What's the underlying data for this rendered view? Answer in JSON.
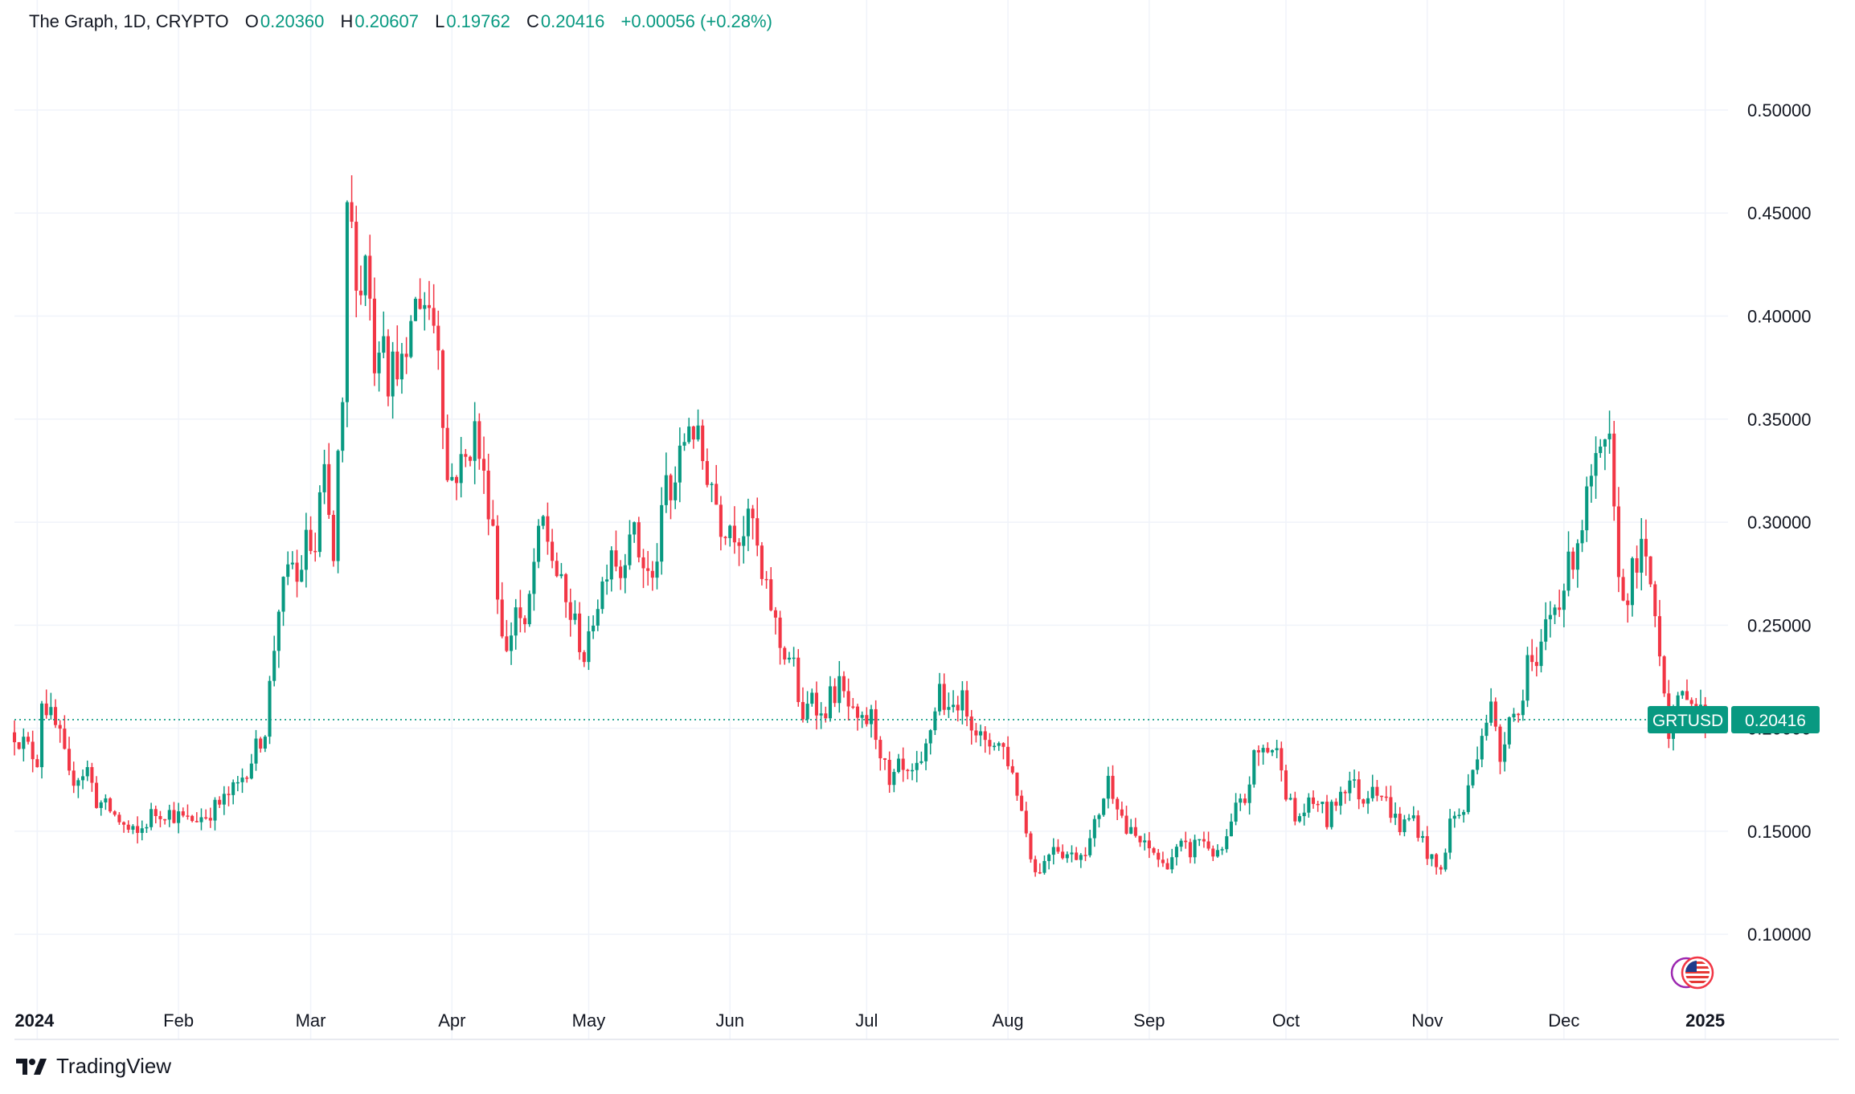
{
  "legend": {
    "title": "The Graph, 1D, CRYPTO",
    "o_label": "O",
    "o_value": "0.20360",
    "h_label": "H",
    "h_value": "0.20607",
    "l_label": "L",
    "l_value": "0.19762",
    "c_label": "C",
    "c_value": "0.20416",
    "change": "+0.00056 (+0.28%)"
  },
  "brand": {
    "name": "TradingView",
    "logo_icon": "tradingview-logo-icon"
  },
  "colors": {
    "up": "#089981",
    "down": "#F23645",
    "grid": "#F0F3FA",
    "text": "#131722",
    "lastline": "#089981"
  },
  "chart_data": {
    "type": "candlestick",
    "symbol": "GRTUSD",
    "last_price": "0.20416",
    "last_value": 0.20416,
    "y_ticks": [
      0.1,
      0.15,
      0.2,
      0.25,
      0.3,
      0.35,
      0.4,
      0.45,
      0.5
    ],
    "y_tick_labels": [
      "0.10000",
      "0.15000",
      "0.20000",
      "0.25000",
      "0.30000",
      "0.35000",
      "0.40000",
      "0.45000",
      "0.50000"
    ],
    "ylim": [
      0.072,
      0.53
    ],
    "x_labels": [
      "2024",
      "Feb",
      "Mar",
      "Apr",
      "May",
      "Jun",
      "Jul",
      "Aug",
      "Sep",
      "Oct",
      "Nov",
      "Dec",
      "2025"
    ],
    "x_label_days": [
      0,
      31,
      60,
      91,
      121,
      152,
      182,
      213,
      244,
      274,
      305,
      335,
      366
    ],
    "x_range_days": [
      -5,
      371
    ],
    "close_path": [
      [
        -5,
        0.198
      ],
      [
        0,
        0.185
      ],
      [
        1,
        0.215
      ],
      [
        3,
        0.205
      ],
      [
        5,
        0.195
      ],
      [
        7,
        0.175
      ],
      [
        11,
        0.18
      ],
      [
        13,
        0.165
      ],
      [
        16,
        0.16
      ],
      [
        20,
        0.15
      ],
      [
        22,
        0.148
      ],
      [
        25,
        0.158
      ],
      [
        28,
        0.16
      ],
      [
        33,
        0.155
      ],
      [
        37,
        0.158
      ],
      [
        41,
        0.165
      ],
      [
        44,
        0.172
      ],
      [
        48,
        0.19
      ],
      [
        50,
        0.2
      ],
      [
        53,
        0.26
      ],
      [
        56,
        0.28
      ],
      [
        57,
        0.27
      ],
      [
        59,
        0.29
      ],
      [
        61,
        0.285
      ],
      [
        62,
        0.31
      ],
      [
        63,
        0.32
      ],
      [
        65,
        0.28
      ],
      [
        66,
        0.33
      ],
      [
        67,
        0.35
      ],
      [
        68,
        0.45
      ],
      [
        69,
        0.44
      ],
      [
        71,
        0.41
      ],
      [
        72,
        0.435
      ],
      [
        74,
        0.38
      ],
      [
        76,
        0.4
      ],
      [
        77,
        0.37
      ],
      [
        79,
        0.38
      ],
      [
        81,
        0.37
      ],
      [
        82,
        0.4
      ],
      [
        84,
        0.41
      ],
      [
        86,
        0.405
      ],
      [
        88,
        0.39
      ],
      [
        90,
        0.32
      ],
      [
        92,
        0.325
      ],
      [
        94,
        0.33
      ],
      [
        96,
        0.345
      ],
      [
        98,
        0.32
      ],
      [
        100,
        0.3
      ],
      [
        101,
        0.265
      ],
      [
        103,
        0.235
      ],
      [
        105,
        0.26
      ],
      [
        107,
        0.245
      ],
      [
        109,
        0.28
      ],
      [
        111,
        0.3
      ],
      [
        114,
        0.275
      ],
      [
        116,
        0.26
      ],
      [
        118,
        0.25
      ],
      [
        120,
        0.235
      ],
      [
        121,
        0.24
      ],
      [
        122,
        0.255
      ],
      [
        124,
        0.27
      ],
      [
        126,
        0.29
      ],
      [
        128,
        0.275
      ],
      [
        130,
        0.3
      ],
      [
        132,
        0.285
      ],
      [
        135,
        0.27
      ],
      [
        137,
        0.3
      ],
      [
        138,
        0.32
      ],
      [
        139,
        0.31
      ],
      [
        141,
        0.33
      ],
      [
        143,
        0.35
      ],
      [
        144,
        0.345
      ],
      [
        146,
        0.33
      ],
      [
        148,
        0.32
      ],
      [
        150,
        0.3
      ],
      [
        152,
        0.3
      ],
      [
        154,
        0.295
      ],
      [
        157,
        0.3
      ],
      [
        159,
        0.27
      ],
      [
        161,
        0.26
      ],
      [
        163,
        0.24
      ],
      [
        165,
        0.235
      ],
      [
        166,
        0.23
      ],
      [
        168,
        0.2
      ],
      [
        170,
        0.22
      ],
      [
        172,
        0.205
      ],
      [
        174,
        0.215
      ],
      [
        176,
        0.22
      ],
      [
        178,
        0.21
      ],
      [
        180,
        0.2
      ],
      [
        183,
        0.205
      ],
      [
        185,
        0.19
      ],
      [
        187,
        0.17
      ],
      [
        189,
        0.18
      ],
      [
        191,
        0.175
      ],
      [
        194,
        0.18
      ],
      [
        196,
        0.2
      ],
      [
        198,
        0.22
      ],
      [
        200,
        0.205
      ],
      [
        202,
        0.215
      ],
      [
        204,
        0.21
      ],
      [
        206,
        0.2
      ],
      [
        208,
        0.19
      ],
      [
        210,
        0.195
      ],
      [
        212,
        0.19
      ],
      [
        213,
        0.185
      ],
      [
        215,
        0.17
      ],
      [
        217,
        0.15
      ],
      [
        219,
        0.13
      ],
      [
        221,
        0.135
      ],
      [
        223,
        0.145
      ],
      [
        225,
        0.14
      ],
      [
        227,
        0.138
      ],
      [
        229,
        0.14
      ],
      [
        231,
        0.145
      ],
      [
        233,
        0.16
      ],
      [
        235,
        0.175
      ],
      [
        237,
        0.165
      ],
      [
        239,
        0.15
      ],
      [
        241,
        0.147
      ],
      [
        243,
        0.142
      ],
      [
        245,
        0.14
      ],
      [
        247,
        0.133
      ],
      [
        249,
        0.138
      ],
      [
        251,
        0.142
      ],
      [
        253,
        0.14
      ],
      [
        255,
        0.147
      ],
      [
        257,
        0.143
      ],
      [
        259,
        0.137
      ],
      [
        261,
        0.145
      ],
      [
        263,
        0.16
      ],
      [
        265,
        0.165
      ],
      [
        267,
        0.185
      ],
      [
        269,
        0.19
      ],
      [
        271,
        0.19
      ],
      [
        273,
        0.185
      ],
      [
        274,
        0.17
      ],
      [
        276,
        0.155
      ],
      [
        278,
        0.16
      ],
      [
        281,
        0.165
      ],
      [
        283,
        0.155
      ],
      [
        286,
        0.17
      ],
      [
        288,
        0.175
      ],
      [
        291,
        0.165
      ],
      [
        293,
        0.175
      ],
      [
        295,
        0.168
      ],
      [
        297,
        0.16
      ],
      [
        299,
        0.152
      ],
      [
        302,
        0.157
      ],
      [
        304,
        0.145
      ],
      [
        306,
        0.135
      ],
      [
        308,
        0.13
      ],
      [
        310,
        0.155
      ],
      [
        313,
        0.16
      ],
      [
        315,
        0.18
      ],
      [
        317,
        0.2
      ],
      [
        319,
        0.21
      ],
      [
        321,
        0.185
      ],
      [
        323,
        0.21
      ],
      [
        325,
        0.205
      ],
      [
        327,
        0.235
      ],
      [
        329,
        0.225
      ],
      [
        331,
        0.25
      ],
      [
        333,
        0.26
      ],
      [
        335,
        0.27
      ],
      [
        337,
        0.285
      ],
      [
        339,
        0.3
      ],
      [
        341,
        0.32
      ],
      [
        343,
        0.33
      ],
      [
        345,
        0.335
      ],
      [
        346,
        0.3
      ],
      [
        348,
        0.26
      ],
      [
        350,
        0.275
      ],
      [
        352,
        0.285
      ],
      [
        354,
        0.27
      ],
      [
        356,
        0.24
      ],
      [
        358,
        0.2
      ],
      [
        360,
        0.21
      ],
      [
        362,
        0.22
      ],
      [
        364,
        0.21
      ],
      [
        366,
        0.205
      ],
      [
        367,
        0.204
      ]
    ]
  }
}
